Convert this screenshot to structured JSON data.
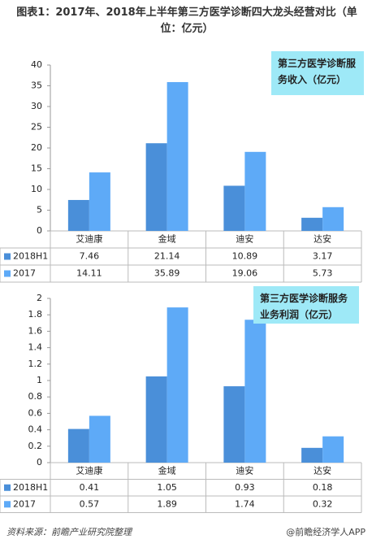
{
  "title": "图表1：2017年、2018年上半年第三方医学诊断四大龙头经营对比（单位：亿元）",
  "chart_data": [
    {
      "type": "bar",
      "annotation": "第三方医学诊断服务收入（亿元）",
      "categories": [
        "艾迪康",
        "金域",
        "迪安",
        "达安"
      ],
      "series": [
        {
          "name": "2018H1",
          "color": "#4a8fd9",
          "values": [
            7.46,
            21.14,
            10.89,
            3.17
          ]
        },
        {
          "name": "2017",
          "color": "#5eaaf7",
          "values": [
            14.11,
            35.89,
            19.06,
            5.73
          ]
        }
      ],
      "ylim": [
        0,
        40
      ],
      "yticks": [
        0,
        5,
        10,
        15,
        20,
        25,
        30,
        35,
        40
      ]
    },
    {
      "type": "bar",
      "annotation": "第三方医学诊断服务业务利润（亿元）",
      "categories": [
        "艾迪康",
        "金域",
        "迪安",
        "达安"
      ],
      "series": [
        {
          "name": "2018H1",
          "color": "#4a8fd9",
          "values": [
            0.41,
            1.05,
            0.93,
            0.18
          ]
        },
        {
          "name": "2017",
          "color": "#5eaaf7",
          "values": [
            0.57,
            1.89,
            1.74,
            0.32
          ]
        }
      ],
      "ylim": [
        0,
        2
      ],
      "yticks": [
        0,
        0.2,
        0.4,
        0.6,
        0.8,
        1,
        1.2,
        1.4,
        1.6,
        1.8,
        2
      ]
    }
  ],
  "source": "资料来源：前瞻产业研究院整理",
  "credit": "@前瞻经济学人APP"
}
